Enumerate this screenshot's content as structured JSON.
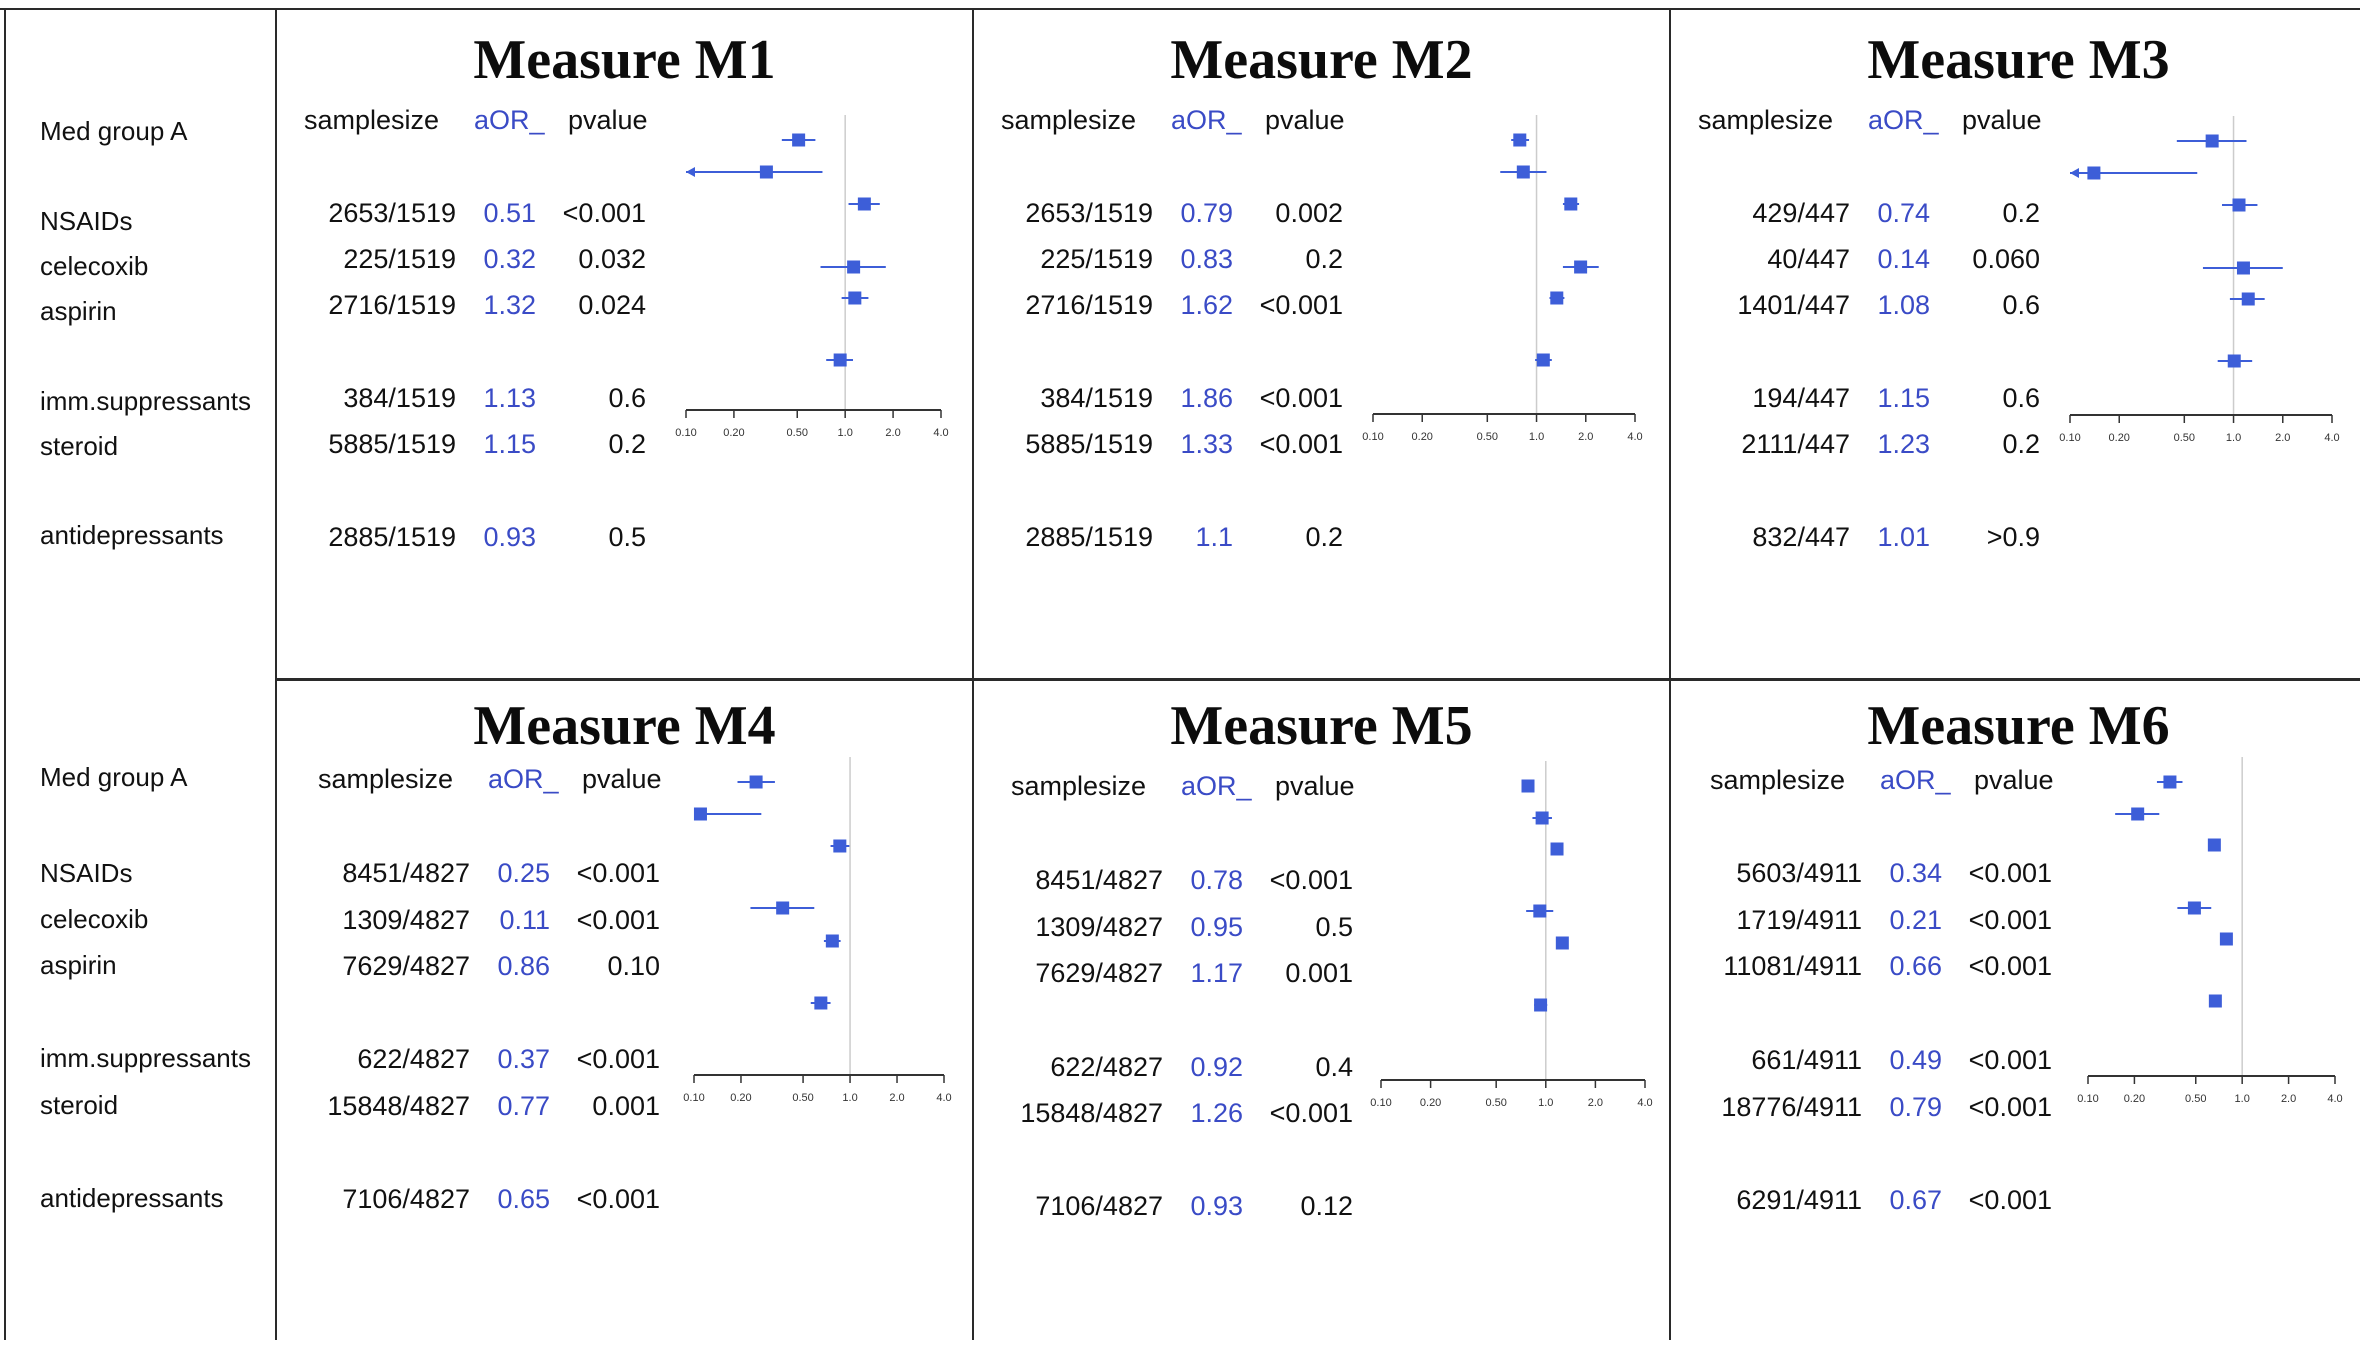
{
  "row_header": "Med group A",
  "medications": [
    "NSAIDs",
    "celecoxib",
    "aspirin",
    "imm.suppressants",
    "steroid",
    "antidepressants"
  ],
  "column_headers": {
    "samplesize": "samplesize",
    "aor": "aOR_",
    "pvalue": "pvalue"
  },
  "colors": {
    "marker": "#3d5ed8",
    "aor_text": "#3a4bc6",
    "reference_line": "#cccccc",
    "axis": "#333333"
  },
  "chart_data": [
    {
      "type": "forest",
      "title": "Measure M1",
      "x_scale": "log",
      "x_ticks": [
        "0.10",
        "0.20",
        "0.50",
        "1.0",
        "2.0",
        "4.0"
      ],
      "x_range": [
        0.1,
        4.0
      ],
      "reference": 1.0,
      "rows": [
        {
          "label": "NSAIDs",
          "samplesize": "2653/1519",
          "aor": "0.51",
          "pvalue": "<0.001",
          "ci": [
            0.4,
            0.65
          ]
        },
        {
          "label": "celecoxib",
          "samplesize": "225/1519",
          "aor": "0.32",
          "pvalue": "0.032",
          "ci": [
            0.1,
            0.72
          ],
          "arrow_low": true
        },
        {
          "label": "aspirin",
          "samplesize": "2716/1519",
          "aor": "1.32",
          "pvalue": "0.024",
          "ci": [
            1.05,
            1.65
          ]
        },
        {
          "label": "imm.suppressants",
          "samplesize": "384/1519",
          "aor": "1.13",
          "pvalue": "0.6",
          "ci": [
            0.7,
            1.8
          ]
        },
        {
          "label": "steroid",
          "samplesize": "5885/1519",
          "aor": "1.15",
          "pvalue": "0.2",
          "ci": [
            0.95,
            1.4
          ]
        },
        {
          "label": "antidepressants",
          "samplesize": "2885/1519",
          "aor": "0.93",
          "pvalue": "0.5",
          "ci": [
            0.76,
            1.12
          ]
        }
      ]
    },
    {
      "type": "forest",
      "title": "Measure M2",
      "x_scale": "log",
      "x_ticks": [
        "0.10",
        "0.20",
        "0.50",
        "1.0",
        "2.0",
        "4.0"
      ],
      "x_range": [
        0.1,
        4.0
      ],
      "reference": 1.0,
      "rows": [
        {
          "label": "NSAIDs",
          "samplesize": "2653/1519",
          "aor": "0.79",
          "pvalue": "0.002",
          "ci": [
            0.7,
            0.9
          ]
        },
        {
          "label": "celecoxib",
          "samplesize": "225/1519",
          "aor": "0.83",
          "pvalue": "0.2",
          "ci": [
            0.6,
            1.15
          ]
        },
        {
          "label": "aspirin",
          "samplesize": "2716/1519",
          "aor": "1.62",
          "pvalue": "<0.001",
          "ci": [
            1.45,
            1.82
          ]
        },
        {
          "label": "imm.suppressants",
          "samplesize": "384/1519",
          "aor": "1.86",
          "pvalue": "<0.001",
          "ci": [
            1.45,
            2.4
          ]
        },
        {
          "label": "steroid",
          "samplesize": "5885/1519",
          "aor": "1.33",
          "pvalue": "<0.001",
          "ci": [
            1.2,
            1.48
          ]
        },
        {
          "label": "antidepressants",
          "samplesize": "2885/1519",
          "aor": "1.1",
          "pvalue": "0.2",
          "ci": [
            0.98,
            1.24
          ]
        }
      ]
    },
    {
      "type": "forest",
      "title": "Measure M3",
      "x_scale": "log",
      "x_ticks": [
        "0.10",
        "0.20",
        "0.50",
        "1.0",
        "2.0",
        "4.0"
      ],
      "x_range": [
        0.1,
        4.0
      ],
      "reference": 1.0,
      "rows": [
        {
          "label": "NSAIDs",
          "samplesize": "429/447",
          "aor": "0.74",
          "pvalue": "0.2",
          "ci": [
            0.45,
            1.2
          ]
        },
        {
          "label": "celecoxib",
          "samplesize": "40/447",
          "aor": "0.14",
          "pvalue": "0.060",
          "ci": [
            0.1,
            0.6
          ],
          "arrow_low": true
        },
        {
          "label": "aspirin",
          "samplesize": "1401/447",
          "aor": "1.08",
          "pvalue": "0.6",
          "ci": [
            0.85,
            1.4
          ]
        },
        {
          "label": "imm.suppressants",
          "samplesize": "194/447",
          "aor": "1.15",
          "pvalue": "0.6",
          "ci": [
            0.65,
            2.0
          ]
        },
        {
          "label": "steroid",
          "samplesize": "2111/447",
          "aor": "1.23",
          "pvalue": "0.2",
          "ci": [
            0.95,
            1.55
          ]
        },
        {
          "label": "antidepressants",
          "samplesize": "832/447",
          "aor": "1.01",
          "pvalue": ">0.9",
          "ci": [
            0.8,
            1.3
          ]
        }
      ]
    },
    {
      "type": "forest",
      "title": "Measure M4",
      "x_scale": "log",
      "x_ticks": [
        "0.10",
        "0.20",
        "0.50",
        "1.0",
        "2.0",
        "4.0"
      ],
      "x_range": [
        0.1,
        4.0
      ],
      "reference": 1.0,
      "rows": [
        {
          "label": "NSAIDs",
          "samplesize": "8451/4827",
          "aor": "0.25",
          "pvalue": "<0.001",
          "ci": [
            0.19,
            0.33
          ]
        },
        {
          "label": "celecoxib",
          "samplesize": "1309/4827",
          "aor": "0.11",
          "pvalue": "<0.001",
          "ci": [
            0.1,
            0.27
          ]
        },
        {
          "label": "aspirin",
          "samplesize": "7629/4827",
          "aor": "0.86",
          "pvalue": "0.10",
          "ci": [
            0.75,
            0.99
          ]
        },
        {
          "label": "imm.suppressants",
          "samplesize": "622/4827",
          "aor": "0.37",
          "pvalue": "<0.001",
          "ci": [
            0.23,
            0.59
          ]
        },
        {
          "label": "steroid",
          "samplesize": "15848/4827",
          "aor": "0.77",
          "pvalue": "0.001",
          "ci": [
            0.68,
            0.87
          ]
        },
        {
          "label": "antidepressants",
          "samplesize": "7106/4827",
          "aor": "0.65",
          "pvalue": "<0.001",
          "ci": [
            0.56,
            0.75
          ]
        }
      ]
    },
    {
      "type": "forest",
      "title": "Measure M5",
      "x_scale": "log",
      "x_ticks": [
        "0.10",
        "0.20",
        "0.50",
        "1.0",
        "2.0",
        "4.0"
      ],
      "x_range": [
        0.1,
        4.0
      ],
      "reference": 1.0,
      "rows": [
        {
          "label": "NSAIDs",
          "samplesize": "8451/4827",
          "aor": "0.78",
          "pvalue": "<0.001",
          "ci": [
            0.72,
            0.85
          ]
        },
        {
          "label": "celecoxib",
          "samplesize": "1309/4827",
          "aor": "0.95",
          "pvalue": "0.5",
          "ci": [
            0.83,
            1.09
          ]
        },
        {
          "label": "aspirin",
          "samplesize": "7629/4827",
          "aor": "1.17",
          "pvalue": "0.001",
          "ci": [
            1.07,
            1.28
          ]
        },
        {
          "label": "imm.suppressants",
          "samplesize": "622/4827",
          "aor": "0.92",
          "pvalue": "0.4",
          "ci": [
            0.76,
            1.11
          ]
        },
        {
          "label": "steroid",
          "samplesize": "15848/4827",
          "aor": "1.26",
          "pvalue": "<0.001",
          "ci": [
            1.17,
            1.36
          ]
        },
        {
          "label": "antidepressants",
          "samplesize": "7106/4827",
          "aor": "0.93",
          "pvalue": "0.12",
          "ci": [
            0.85,
            1.02
          ]
        }
      ]
    },
    {
      "type": "forest",
      "title": "Measure M6",
      "x_scale": "log",
      "x_ticks": [
        "0.10",
        "0.20",
        "0.50",
        "1.0",
        "2.0",
        "4.0"
      ],
      "x_range": [
        0.1,
        4.0
      ],
      "reference": 1.0,
      "rows": [
        {
          "label": "NSAIDs",
          "samplesize": "5603/4911",
          "aor": "0.34",
          "pvalue": "<0.001",
          "ci": [
            0.28,
            0.41
          ]
        },
        {
          "label": "celecoxib",
          "samplesize": "1719/4911",
          "aor": "0.21",
          "pvalue": "<0.001",
          "ci": [
            0.15,
            0.29
          ]
        },
        {
          "label": "aspirin",
          "samplesize": "11081/4911",
          "aor": "0.66",
          "pvalue": "<0.001",
          "ci": [
            0.62,
            0.71
          ]
        },
        {
          "label": "imm.suppressants",
          "samplesize": "661/4911",
          "aor": "0.49",
          "pvalue": "<0.001",
          "ci": [
            0.38,
            0.63
          ]
        },
        {
          "label": "steroid",
          "samplesize": "18776/4911",
          "aor": "0.79",
          "pvalue": "<0.001",
          "ci": [
            0.75,
            0.84
          ]
        },
        {
          "label": "antidepressants",
          "samplesize": "6291/4911",
          "aor": "0.67",
          "pvalue": "<0.001",
          "ci": [
            0.62,
            0.73
          ]
        }
      ]
    }
  ]
}
